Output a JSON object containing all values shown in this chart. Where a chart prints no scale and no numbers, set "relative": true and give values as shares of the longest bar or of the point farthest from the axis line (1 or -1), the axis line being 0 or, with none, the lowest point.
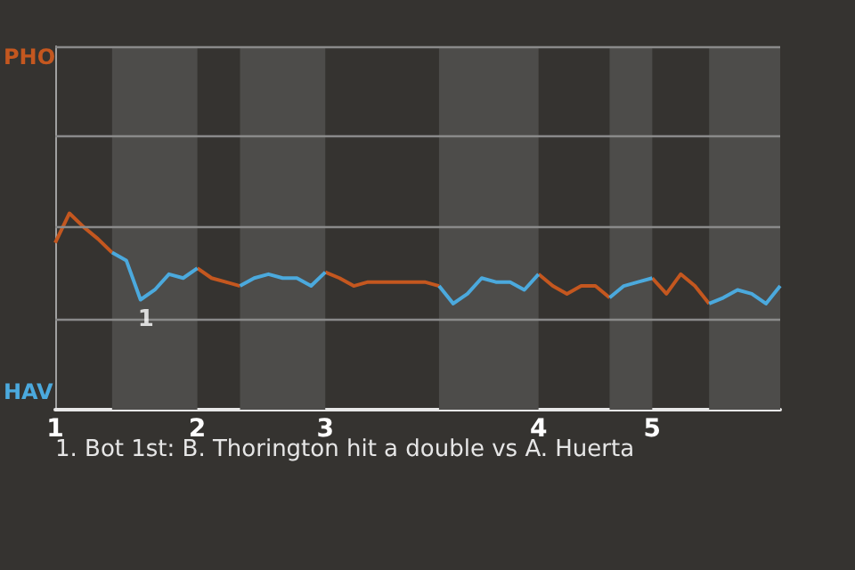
{
  "chart_data": {
    "type": "line",
    "categories": [
      "1",
      null,
      null,
      null,
      null,
      null,
      null,
      null,
      null,
      null,
      "2",
      null,
      null,
      null,
      null,
      null,
      null,
      null,
      null,
      "3",
      null,
      null,
      null,
      null,
      null,
      null,
      null,
      null,
      null,
      null,
      null,
      null,
      null,
      null,
      "4",
      null,
      null,
      null,
      null,
      null,
      null,
      null,
      "5",
      null,
      null,
      null,
      null,
      null,
      null,
      null,
      null,
      null
    ],
    "series": [
      {
        "name": "PHO",
        "color": "#c4571f",
        "values": [
          0.85,
          1,
          0.93,
          0.87,
          0.8,
          null,
          null,
          null,
          null,
          null,
          0.72,
          0.67,
          0.65,
          0.63,
          null,
          null,
          null,
          null,
          null,
          0.7,
          0.67,
          0.63,
          0.65,
          0.65,
          0.65,
          0.65,
          0.65,
          0.63,
          null,
          null,
          null,
          null,
          null,
          null,
          0.69,
          0.63,
          0.59,
          0.63,
          0.63,
          0.57,
          null,
          null,
          0.67,
          0.59,
          0.69,
          0.63,
          0.54,
          null,
          null,
          null,
          null,
          null
        ]
      },
      {
        "name": "HAV",
        "color": "#4ba9dd",
        "values": [
          null,
          null,
          null,
          null,
          0.8,
          0.76,
          0.56,
          0.61,
          0.69,
          0.67,
          0.72,
          null,
          null,
          0.63,
          0.67,
          0.69,
          0.67,
          0.67,
          0.63,
          0.7,
          null,
          null,
          null,
          null,
          null,
          null,
          null,
          0.63,
          0.54,
          0.59,
          0.67,
          0.65,
          0.65,
          0.61,
          0.69,
          null,
          null,
          null,
          null,
          0.57,
          0.63,
          0.65,
          0.67,
          null,
          null,
          null,
          0.54,
          0.57,
          0.61,
          0.59,
          0.54,
          0.63
        ]
      }
    ],
    "relative": true,
    "annotations": [
      {
        "text": "1",
        "y": 0.56
      },
      "1. Bot 1st: B. Thorington hit a double vs A. Huerta"
    ],
    "legend": "left",
    "ref_lines": [
      {
        "axis": "y",
        "value": 0.46,
        "color": "#8a8a8a"
      },
      {
        "axis": "y",
        "value": 0.93,
        "color": "#8a8a8a"
      },
      {
        "axis": "y",
        "value": 1.39,
        "color": "#8a8a8a"
      },
      {
        "axis": "y",
        "value": 1.85,
        "color": "#8a8a8a"
      }
    ],
    "marker": "none"
  }
}
